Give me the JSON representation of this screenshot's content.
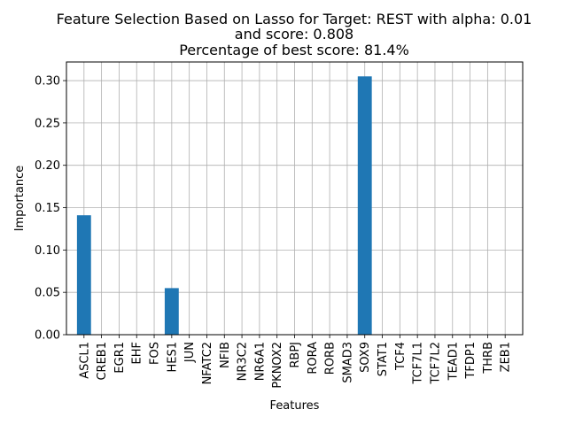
{
  "chart_data": {
    "type": "bar",
    "title_lines": [
      "Feature Selection Based on Lasso for Target: REST with alpha: 0.01",
      "and score: 0.808",
      "Percentage of best score: 81.4%"
    ],
    "xlabel": "Features",
    "ylabel": "Importance",
    "categories": [
      "ASCL1",
      "CREB1",
      "EGR1",
      "EHF",
      "FOS",
      "HES1",
      "JUN",
      "NFATC2",
      "NFIB",
      "NR3C2",
      "NR6A1",
      "PKNOX2",
      "RBPJ",
      "RORA",
      "RORB",
      "SMAD3",
      "SOX9",
      "STAT1",
      "TCF4",
      "TCF7L1",
      "TCF7L2",
      "TEAD1",
      "TFDP1",
      "THRB",
      "ZEB1"
    ],
    "values": [
      0.141,
      0,
      0,
      0,
      0,
      0.055,
      0,
      0,
      0,
      0,
      0,
      0,
      0,
      0,
      0,
      0,
      0.305,
      0,
      0,
      0,
      0,
      0,
      0,
      0,
      0
    ],
    "ylim": [
      0,
      0.322
    ],
    "yticks": [
      0.0,
      0.05,
      0.1,
      0.15,
      0.2,
      0.25,
      0.3
    ],
    "ytick_labels": [
      "0.00",
      "0.05",
      "0.10",
      "0.15",
      "0.20",
      "0.25",
      "0.30"
    ],
    "grid": true,
    "bar_color": "#1f77b4"
  }
}
